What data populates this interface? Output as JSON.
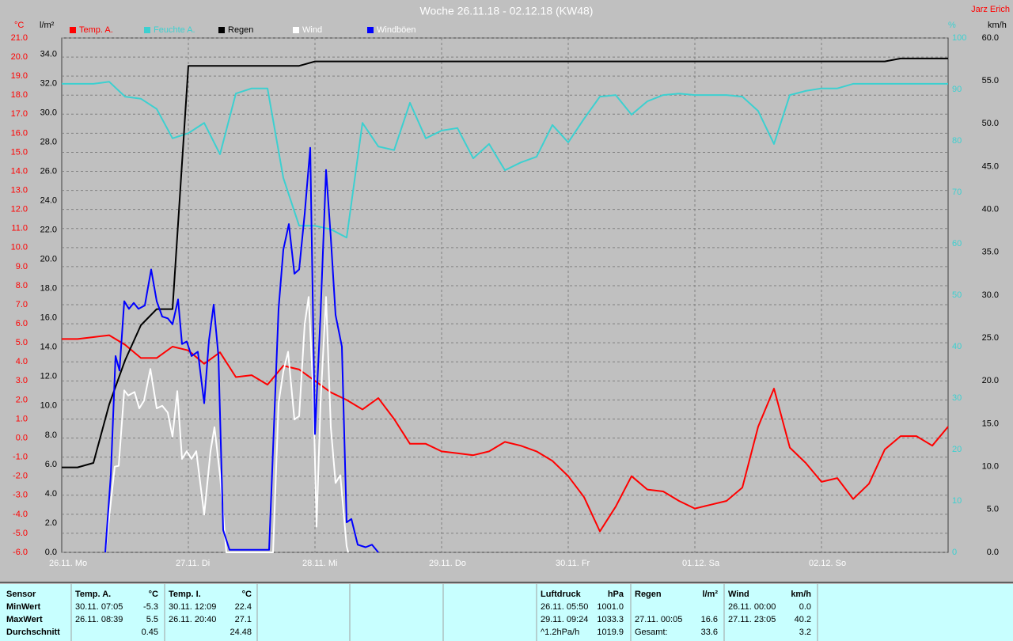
{
  "chart_data": {
    "type": "line",
    "title": "Woche 26.11.18 - 02.12.18 (KW48)",
    "author": "Jarz Erich",
    "ylabel": "°C",
    "y2label": "l/m²",
    "y3label": "%",
    "y4label": "km/h",
    "axis_colors": {
      "y": "#ff0000",
      "y2": "#000000",
      "y3": "#3cd0d0",
      "y4": "#000000"
    },
    "grid": true,
    "xlim": [
      0,
      168
    ],
    "xticks": [
      {
        "value": 0,
        "label": "26.11. Mo"
      },
      {
        "value": 24,
        "label": "27.11. Di"
      },
      {
        "value": 48,
        "label": "28.11. Mi"
      },
      {
        "value": 72,
        "label": "29.11. Do"
      },
      {
        "value": 96,
        "label": "30.11. Fr"
      },
      {
        "value": 120,
        "label": "01.12. Sa"
      },
      {
        "value": 144,
        "label": "02.12. So"
      }
    ],
    "ylim": [
      -6,
      21
    ],
    "yticks": [
      {
        "value": 21,
        "label": "21.0"
      },
      {
        "value": 20,
        "label": "20.0"
      },
      {
        "value": 19,
        "label": "19.0"
      },
      {
        "value": 18,
        "label": "18.0"
      },
      {
        "value": 17,
        "label": "17.0"
      },
      {
        "value": 16,
        "label": "16.0"
      },
      {
        "value": 15,
        "label": "15.0"
      },
      {
        "value": 14,
        "label": "14.0"
      },
      {
        "value": 13,
        "label": "13.0"
      },
      {
        "value": 12,
        "label": "12.0"
      },
      {
        "value": 11,
        "label": "11.0"
      },
      {
        "value": 10,
        "label": "10.0"
      },
      {
        "value": 9,
        "label": "9.0"
      },
      {
        "value": 8,
        "label": "8.0"
      },
      {
        "value": 7,
        "label": "7.0"
      },
      {
        "value": 6,
        "label": "6.0"
      },
      {
        "value": 5,
        "label": "5.0"
      },
      {
        "value": 4,
        "label": "4.0"
      },
      {
        "value": 3,
        "label": "3.0"
      },
      {
        "value": 2,
        "label": "2.0"
      },
      {
        "value": 1,
        "label": "1.0"
      },
      {
        "value": 0,
        "label": "0.0"
      },
      {
        "value": -1,
        "label": "-1.0"
      },
      {
        "value": -2,
        "label": "-2.0"
      },
      {
        "value": -3,
        "label": "-3.0"
      },
      {
        "value": -4,
        "label": "-4.0"
      },
      {
        "value": -5,
        "label": "-5.0"
      },
      {
        "value": -6,
        "label": "-6.0"
      }
    ],
    "y2lim": [
      0,
      35.1
    ],
    "y2ticks": [
      {
        "value": 34,
        "label": "34.0"
      },
      {
        "value": 32,
        "label": "32.0"
      },
      {
        "value": 30,
        "label": "30.0"
      },
      {
        "value": 28,
        "label": "28.0"
      },
      {
        "value": 26,
        "label": "26.0"
      },
      {
        "value": 24,
        "label": "24.0"
      },
      {
        "value": 22,
        "label": "22.0"
      },
      {
        "value": 20,
        "label": "20.0"
      },
      {
        "value": 18,
        "label": "18.0"
      },
      {
        "value": 16,
        "label": "16.0"
      },
      {
        "value": 14,
        "label": "14.0"
      },
      {
        "value": 12,
        "label": "12.0"
      },
      {
        "value": 10,
        "label": "10.0"
      },
      {
        "value": 8,
        "label": "8.0"
      },
      {
        "value": 6,
        "label": "6.0"
      },
      {
        "value": 4,
        "label": "4.0"
      },
      {
        "value": 2,
        "label": "2.0"
      },
      {
        "value": 0,
        "label": "0.0"
      }
    ],
    "y3lim": [
      0,
      100
    ],
    "y3ticks": [
      100,
      90,
      80,
      70,
      60,
      50,
      40,
      30,
      20,
      10,
      0
    ],
    "y4lim": [
      0,
      60
    ],
    "y4ticks": [
      {
        "value": 60,
        "label": "60.0"
      },
      {
        "value": 55,
        "label": "55.0"
      },
      {
        "value": 50,
        "label": "50.0"
      },
      {
        "value": 45,
        "label": "45.0"
      },
      {
        "value": 40,
        "label": "40.0"
      },
      {
        "value": 35,
        "label": "35.0"
      },
      {
        "value": 30,
        "label": "30.0"
      },
      {
        "value": 25,
        "label": "25.0"
      },
      {
        "value": 20,
        "label": "20.0"
      },
      {
        "value": 15,
        "label": "15.0"
      },
      {
        "value": 10,
        "label": "10.0"
      },
      {
        "value": 5,
        "label": "5.0"
      },
      {
        "value": 0,
        "label": "0.0"
      }
    ],
    "x": [
      0,
      3,
      6,
      9,
      12,
      15,
      18,
      21,
      24,
      27,
      30,
      33,
      36,
      39,
      42,
      45,
      48,
      51,
      54,
      57,
      60,
      63,
      66,
      69,
      72,
      75,
      78,
      81,
      84,
      87,
      90,
      93,
      96,
      99,
      102,
      105,
      108,
      111,
      114,
      117,
      120,
      123,
      126,
      129,
      132,
      135,
      138,
      141,
      144,
      147,
      150,
      153,
      156,
      159,
      162,
      165,
      168
    ],
    "series": [
      {
        "name": "Temp. A.",
        "color": "#ff0000",
        "label_color": "#ff0000",
        "axis": "y",
        "values": [
          5.2,
          5.2,
          5.3,
          5.4,
          4.9,
          4.2,
          4.2,
          4.8,
          4.6,
          3.9,
          4.5,
          3.2,
          3.3,
          2.8,
          3.8,
          3.6,
          3.0,
          2.4,
          2.0,
          1.5,
          2.1,
          1.0,
          -0.3,
          -0.3,
          -0.7,
          -0.8,
          -0.9,
          -0.7,
          -0.2,
          -0.4,
          -0.7,
          -1.2,
          -2.0,
          -3.1,
          -4.9,
          -3.6,
          -2.0,
          -2.7,
          -2.8,
          -3.3,
          -3.7,
          -3.5,
          -3.3,
          -2.6,
          0.6,
          2.6,
          -0.5,
          -1.3,
          -2.3,
          -2.1,
          -3.2,
          -2.4,
          -0.6,
          0.1,
          0.1,
          -0.4,
          0.6
        ]
      },
      {
        "name": "Feuchte A.",
        "color": "#3cd0d0",
        "label_color": "#3cd0d0",
        "axis": "y3",
        "values": [
          91.1,
          91.1,
          91.1,
          91.5,
          88.6,
          88.2,
          86.2,
          80.5,
          81.5,
          83.5,
          77.4,
          89.2,
          90.2,
          90.2,
          72.8,
          63.5,
          63.5,
          62.8,
          61.2,
          83.5,
          78.9,
          78.2,
          87.4,
          80.5,
          82,
          82.5,
          76.6,
          79.4,
          74.3,
          75.8,
          76.9,
          83.1,
          79.7,
          84.3,
          88.6,
          88.9,
          85.1,
          87.7,
          88.9,
          89.2,
          88.9,
          88.9,
          88.9,
          88.6,
          85.8,
          79.4,
          88.9,
          89.7,
          90.2,
          90.2,
          91.1,
          91.1,
          91.1,
          91.1,
          91.1,
          91.1,
          91.1
        ]
      },
      {
        "name": "Regen",
        "color": "#000000",
        "label_color": "#000000",
        "axis": "y2",
        "values": [
          5.8,
          5.8,
          6.1,
          10.1,
          13.1,
          15.5,
          16.6,
          16.6,
          33.2,
          33.2,
          33.2,
          33.2,
          33.2,
          33.2,
          33.2,
          33.2,
          33.5,
          33.5,
          33.5,
          33.5,
          33.5,
          33.5,
          33.5,
          33.5,
          33.5,
          33.5,
          33.5,
          33.5,
          33.5,
          33.5,
          33.5,
          33.5,
          33.5,
          33.5,
          33.5,
          33.5,
          33.5,
          33.5,
          33.5,
          33.5,
          33.5,
          33.5,
          33.5,
          33.5,
          33.5,
          33.5,
          33.5,
          33.5,
          33.5,
          33.5,
          33.5,
          33.5,
          33.5,
          33.7,
          33.7,
          33.7,
          33.7
        ]
      },
      {
        "name": "Wind",
        "color": "#ffffff",
        "label_color": "#ffffff",
        "axis": "y4",
        "x": [
          8.25,
          10.05,
          10.8,
          11.85,
          12.6,
          13.8,
          14.7,
          15.6,
          16.8,
          18.0,
          19.05,
          20.1,
          21.0,
          21.9,
          22.8,
          23.7,
          24.6,
          25.5,
          27.0,
          28.2,
          28.95,
          30.0,
          31.2,
          40.05,
          41.1,
          42.0,
          42.9,
          44.1,
          45.0,
          46.05,
          46.8,
          47.7,
          48.3,
          49.05,
          50.1,
          51.0,
          51.9,
          52.8,
          54.0,
          54.3
        ],
        "values": [
          0,
          10.0,
          10.1,
          18.9,
          18.3,
          18.7,
          16.8,
          17.7,
          21.4,
          16.8,
          17.1,
          16.3,
          13.5,
          18.8,
          10.9,
          11.8,
          10.9,
          11.8,
          4.4,
          11.8,
          14.6,
          9.0,
          0,
          0,
          17.4,
          21.1,
          23.4,
          15.5,
          15.9,
          26.6,
          29.8,
          18.3,
          3.0,
          17.4,
          29.8,
          14.6,
          8.1,
          9.0,
          0.7,
          0
        ]
      },
      {
        "name": "Windböen",
        "color": "#0000ff",
        "label_color": "#ffffff",
        "axis": "y4",
        "x": [
          8.25,
          9.3,
          10.2,
          10.95,
          11.85,
          12.75,
          13.65,
          14.55,
          15.75,
          16.95,
          18.0,
          19.05,
          20.1,
          21.0,
          22.05,
          22.8,
          23.7,
          24.6,
          25.8,
          27.0,
          27.9,
          28.8,
          29.7,
          30.6,
          31.8,
          33.3,
          39.3,
          41.1,
          42.0,
          43.05,
          44.1,
          45.0,
          46.05,
          47.1,
          48.0,
          49.05,
          50.1,
          51.0,
          51.9,
          53.1,
          54.0,
          54.9,
          56.1,
          57.6,
          58.8,
          60.0
        ],
        "values": [
          0,
          9.0,
          22.9,
          21.2,
          29.3,
          28.4,
          29.1,
          28.4,
          28.8,
          33.0,
          29.3,
          27.5,
          27.3,
          26.6,
          29.5,
          24.3,
          24.6,
          22.9,
          23.4,
          17.4,
          24.7,
          28.9,
          22.9,
          2.6,
          0.3,
          0.3,
          0.3,
          28.4,
          35.3,
          38.3,
          32.5,
          33.0,
          39.5,
          47.2,
          13.8,
          27.7,
          44.6,
          36.7,
          27.7,
          24.0,
          3.5,
          3.9,
          0.9,
          0.6,
          0.9,
          0
        ]
      }
    ]
  },
  "stats": {
    "header": "Sensor",
    "row_labels": [
      "MinWert",
      "MaxWert",
      "Durchschnitt"
    ],
    "columns": [
      {
        "title": "Temp. A.",
        "unit": "°C",
        "rows": [
          {
            "time": "30.11. 07:05",
            "value": "-5.3"
          },
          {
            "time": "26.11. 08:39",
            "value": "5.5"
          },
          {
            "value": "0.45"
          }
        ]
      },
      {
        "title": "Temp. I.",
        "unit": "°C",
        "rows": [
          {
            "time": "30.11. 12:09",
            "value": "22.4"
          },
          {
            "time": "26.11. 20:40",
            "value": "27.1"
          },
          {
            "value": "24.48"
          }
        ]
      },
      {
        "title": "Luftdruck",
        "unit": "hPa",
        "rows": [
          {
            "time": "26.11. 05:50",
            "value": "1001.0"
          },
          {
            "time": "29.11. 09:24",
            "value": "1033.3"
          },
          {
            "time": "^1.2hPa/h",
            "value": "1019.9"
          }
        ]
      },
      {
        "title": "Regen",
        "unit": "l/m²",
        "rows": [
          null,
          {
            "time": "27.11. 00:05",
            "value": "16.6"
          },
          {
            "time": "Gesamt:",
            "value": "33.6"
          }
        ]
      },
      {
        "title": "Wind",
        "unit": "km/h",
        "rows": [
          {
            "time": "26.11. 00:00",
            "value": "0.0"
          },
          {
            "time": "27.11. 23:05",
            "value": "40.2"
          },
          {
            "value": "3.2"
          }
        ]
      }
    ]
  }
}
